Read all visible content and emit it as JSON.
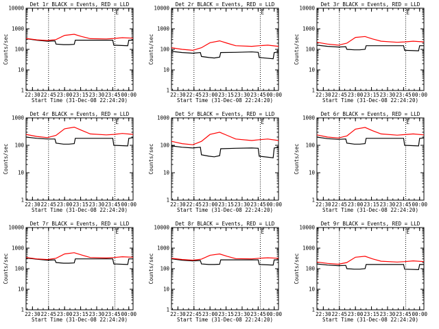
{
  "figure": {
    "background": "#ffffff",
    "axis_color": "#000000",
    "events_color": "#000000",
    "lld_color": "#ff0000"
  },
  "chart_data": [
    {
      "type": "line",
      "title": "Det 1r BLACK = Events, RED = LLD",
      "ylabel": "Counts/sec",
      "xlabel": "Start Time (31-Dec-08 22:24:20)",
      "yscale": "log",
      "ylim": [
        1,
        10000
      ],
      "y_ticks": [
        "1",
        "10",
        "100",
        "1000",
        "10000"
      ],
      "x_tick_labels": [
        "22:30",
        "22:45",
        "23:00",
        "23:15",
        "23:30",
        "23:45",
        "00:00"
      ],
      "x_ticks_min": [
        6,
        21,
        36,
        51,
        66,
        81,
        96
      ],
      "xlim_min": [
        0,
        100
      ],
      "vlines_min": [
        21,
        83
      ],
      "annotation": "E",
      "series": [
        {
          "name": "Events",
          "color": "#000000",
          "x": [
            0,
            10,
            20,
            27,
            28,
            35,
            40,
            45,
            46,
            60,
            75,
            81,
            82,
            95,
            96,
            100
          ],
          "y": [
            330,
            280,
            250,
            260,
            180,
            170,
            170,
            175,
            280,
            280,
            280,
            280,
            160,
            150,
            280,
            280
          ]
        },
        {
          "name": "LLD",
          "color": "#ff0000",
          "x": [
            0,
            10,
            20,
            28,
            36,
            45,
            52,
            60,
            75,
            82,
            90,
            100
          ],
          "y": [
            340,
            290,
            270,
            300,
            480,
            540,
            420,
            330,
            320,
            340,
            370,
            350
          ]
        }
      ]
    },
    {
      "type": "line",
      "title": "Det 2r BLACK = Events, RED = LLD",
      "ylabel": "Counts/sec",
      "xlabel": "Start Time (31-Dec-08 22:24:20)",
      "yscale": "log",
      "ylim": [
        1,
        10000
      ],
      "y_ticks": [
        "1",
        "10",
        "100",
        "1000",
        "10000"
      ],
      "x_tick_labels": [
        "22:30",
        "22:45",
        "23:00",
        "23:15",
        "23:30",
        "23:45",
        "00:00"
      ],
      "x_ticks_min": [
        6,
        21,
        36,
        51,
        66,
        81,
        96
      ],
      "xlim_min": [
        0,
        100
      ],
      "vlines_min": [
        21,
        83
      ],
      "annotation": "E",
      "series": [
        {
          "name": "Events",
          "color": "#000000",
          "x": [
            0,
            10,
            20,
            27,
            28,
            35,
            40,
            45,
            46,
            60,
            75,
            81,
            82,
            95,
            96,
            100
          ],
          "y": [
            80,
            70,
            65,
            70,
            45,
            40,
            38,
            42,
            70,
            72,
            75,
            72,
            40,
            35,
            70,
            75
          ]
        },
        {
          "name": "LLD",
          "color": "#ff0000",
          "x": [
            0,
            10,
            20,
            28,
            36,
            45,
            52,
            60,
            75,
            82,
            90,
            100
          ],
          "y": [
            120,
            100,
            90,
            120,
            210,
            260,
            200,
            150,
            140,
            150,
            160,
            140
          ]
        }
      ]
    },
    {
      "type": "line",
      "title": "Det 3r BLACK = Events, RED = LLD",
      "ylabel": "Counts/sec",
      "xlabel": "Start Time (31-Dec-08 22:24:20)",
      "yscale": "log",
      "ylim": [
        1,
        10000
      ],
      "y_ticks": [
        "1",
        "10",
        "100",
        "1000",
        "10000"
      ],
      "x_tick_labels": [
        "22:30",
        "22:45",
        "23:00",
        "23:15",
        "23:30",
        "23:45",
        "00:00"
      ],
      "x_ticks_min": [
        6,
        21,
        36,
        51,
        66,
        81,
        96
      ],
      "xlim_min": [
        0,
        100
      ],
      "vlines_min": [
        21,
        83
      ],
      "annotation": "E",
      "series": [
        {
          "name": "Events",
          "color": "#000000",
          "x": [
            0,
            10,
            20,
            27,
            28,
            35,
            40,
            45,
            46,
            60,
            75,
            81,
            82,
            95,
            96,
            100
          ],
          "y": [
            160,
            140,
            130,
            135,
            100,
            95,
            95,
            100,
            150,
            150,
            150,
            150,
            90,
            85,
            150,
            150
          ]
        },
        {
          "name": "LLD",
          "color": "#ff0000",
          "x": [
            0,
            10,
            20,
            28,
            36,
            45,
            52,
            60,
            75,
            82,
            90,
            100
          ],
          "y": [
            220,
            180,
            160,
            200,
            380,
            420,
            320,
            250,
            220,
            230,
            250,
            230
          ]
        }
      ]
    },
    {
      "type": "line",
      "title": "Det 4r BLACK = Events, RED = LLD",
      "ylabel": "Counts/sec",
      "xlabel": "Start Time (31-Dec-08 22:24:20)",
      "yscale": "log",
      "ylim": [
        1,
        1000
      ],
      "y_ticks": [
        "1",
        "10",
        "100",
        "1000"
      ],
      "x_tick_labels": [
        "22:30",
        "22:45",
        "23:00",
        "23:15",
        "23:30",
        "23:45",
        "00:00"
      ],
      "x_ticks_min": [
        6,
        21,
        36,
        51,
        66,
        81,
        96
      ],
      "xlim_min": [
        0,
        100
      ],
      "vlines_min": [
        21,
        83
      ],
      "annotation": "E",
      "series": [
        {
          "name": "Events",
          "color": "#000000",
          "x": [
            0,
            10,
            20,
            27,
            28,
            35,
            40,
            45,
            46,
            60,
            75,
            81,
            82,
            95,
            96,
            100
          ],
          "y": [
            200,
            180,
            170,
            170,
            120,
            110,
            110,
            115,
            180,
            180,
            180,
            180,
            100,
            95,
            180,
            190
          ]
        },
        {
          "name": "LLD",
          "color": "#ff0000",
          "x": [
            0,
            10,
            20,
            28,
            36,
            45,
            52,
            60,
            75,
            82,
            90,
            100
          ],
          "y": [
            250,
            210,
            190,
            230,
            400,
            460,
            350,
            260,
            240,
            250,
            270,
            250
          ]
        }
      ]
    },
    {
      "type": "line",
      "title": "Det 5r BLACK = Events, RED = LLD",
      "ylabel": "Counts/sec",
      "xlabel": "Start Time (31-Dec-08 22:24:20)",
      "yscale": "log",
      "ylim": [
        1,
        1000
      ],
      "y_ticks": [
        "1",
        "10",
        "100",
        "1000"
      ],
      "x_tick_labels": [
        "22:30",
        "22:45",
        "23:00",
        "23:15",
        "23:30",
        "23:45",
        "00:00"
      ],
      "x_ticks_min": [
        6,
        21,
        36,
        51,
        66,
        81,
        96
      ],
      "xlim_min": [
        0,
        100
      ],
      "vlines_min": [
        21,
        83
      ],
      "annotation": "E",
      "series": [
        {
          "name": "Events",
          "color": "#000000",
          "x": [
            0,
            10,
            20,
            27,
            28,
            35,
            40,
            45,
            46,
            60,
            75,
            81,
            82,
            95,
            96,
            100
          ],
          "y": [
            95,
            85,
            80,
            85,
            45,
            40,
            38,
            42,
            75,
            78,
            80,
            78,
            40,
            35,
            80,
            85
          ]
        },
        {
          "name": "LLD",
          "color": "#ff0000",
          "x": [
            0,
            10,
            20,
            28,
            36,
            45,
            52,
            60,
            75,
            82,
            90,
            100
          ],
          "y": [
            140,
            115,
            105,
            140,
            250,
            300,
            230,
            170,
            150,
            160,
            170,
            150
          ]
        }
      ]
    },
    {
      "type": "line",
      "title": "Det 6r BLACK = Events, RED = LLD",
      "ylabel": "Counts/sec",
      "xlabel": "Start Time (31-Dec-08 22:24:20)",
      "yscale": "log",
      "ylim": [
        1,
        1000
      ],
      "y_ticks": [
        "1",
        "10",
        "100",
        "1000"
      ],
      "x_tick_labels": [
        "22:30",
        "22:45",
        "23:00",
        "23:15",
        "23:30",
        "23:45",
        "00:00"
      ],
      "x_ticks_min": [
        6,
        21,
        36,
        51,
        66,
        81,
        96
      ],
      "xlim_min": [
        0,
        100
      ],
      "vlines_min": [
        21,
        83
      ],
      "annotation": "E",
      "series": [
        {
          "name": "Events",
          "color": "#000000",
          "x": [
            0,
            10,
            20,
            27,
            28,
            35,
            40,
            45,
            46,
            60,
            75,
            81,
            82,
            95,
            96,
            100
          ],
          "y": [
            200,
            175,
            165,
            170,
            120,
            110,
            110,
            115,
            180,
            180,
            180,
            180,
            100,
            95,
            180,
            185
          ]
        },
        {
          "name": "LLD",
          "color": "#ff0000",
          "x": [
            0,
            10,
            20,
            28,
            36,
            45,
            52,
            60,
            75,
            82,
            90,
            100
          ],
          "y": [
            240,
            200,
            185,
            220,
            390,
            450,
            340,
            260,
            235,
            245,
            260,
            240
          ]
        }
      ]
    },
    {
      "type": "line",
      "title": "Det 7r BLACK = Events, RED = LLD",
      "ylabel": "Counts/sec",
      "xlabel": "Start Time (31-Dec-08 22:24:20)",
      "yscale": "log",
      "ylim": [
        1,
        10000
      ],
      "y_ticks": [
        "1",
        "10",
        "100",
        "1000",
        "10000"
      ],
      "x_tick_labels": [
        "22:30",
        "22:45",
        "23:00",
        "23:15",
        "23:30",
        "23:45",
        "00:00"
      ],
      "x_ticks_min": [
        6,
        21,
        36,
        51,
        66,
        81,
        96
      ],
      "xlim_min": [
        0,
        100
      ],
      "vlines_min": [
        21,
        83
      ],
      "annotation": "E",
      "series": [
        {
          "name": "Events",
          "color": "#000000",
          "x": [
            0,
            10,
            20,
            27,
            28,
            35,
            40,
            45,
            46,
            60,
            75,
            81,
            82,
            95,
            96,
            100
          ],
          "y": [
            330,
            290,
            260,
            270,
            200,
            185,
            185,
            190,
            300,
            300,
            300,
            300,
            170,
            160,
            300,
            300
          ]
        },
        {
          "name": "LLD",
          "color": "#ff0000",
          "x": [
            0,
            10,
            20,
            28,
            36,
            45,
            52,
            60,
            75,
            82,
            90,
            100
          ],
          "y": [
            350,
            300,
            280,
            320,
            520,
            600,
            460,
            350,
            330,
            350,
            380,
            360
          ]
        }
      ]
    },
    {
      "type": "line",
      "title": "Det 8r BLACK = Events, RED = LLD",
      "ylabel": "Counts/sec",
      "xlabel": "Start Time (31-Dec-08 22:24:20)",
      "yscale": "log",
      "ylim": [
        1,
        10000
      ],
      "y_ticks": [
        "1",
        "10",
        "100",
        "1000",
        "10000"
      ],
      "x_tick_labels": [
        "22:30",
        "22:45",
        "23:00",
        "23:15",
        "23:30",
        "23:45",
        "00:00"
      ],
      "x_ticks_min": [
        6,
        21,
        36,
        51,
        66,
        81,
        96
      ],
      "xlim_min": [
        0,
        100
      ],
      "vlines_min": [
        21,
        83
      ],
      "annotation": "E",
      "series": [
        {
          "name": "Events",
          "color": "#000000",
          "x": [
            0,
            10,
            20,
            27,
            28,
            35,
            40,
            45,
            46,
            60,
            75,
            81,
            82,
            95,
            96,
            100
          ],
          "y": [
            300,
            260,
            240,
            250,
            170,
            160,
            160,
            165,
            270,
            270,
            270,
            270,
            160,
            150,
            270,
            270
          ]
        },
        {
          "name": "LLD",
          "color": "#ff0000",
          "x": [
            0,
            10,
            20,
            28,
            36,
            45,
            52,
            60,
            75,
            82,
            90,
            100
          ],
          "y": [
            320,
            280,
            260,
            290,
            450,
            520,
            400,
            310,
            300,
            320,
            340,
            320
          ]
        }
      ]
    },
    {
      "type": "line",
      "title": "Det 9r BLACK = Events, RED = LLD",
      "ylabel": "Counts/sec",
      "xlabel": "Start Time (31-Dec-08 22:24:20)",
      "yscale": "log",
      "ylim": [
        1,
        10000
      ],
      "y_ticks": [
        "1",
        "10",
        "100",
        "1000",
        "10000"
      ],
      "x_tick_labels": [
        "22:30",
        "22:45",
        "23:00",
        "23:15",
        "23:30",
        "23:45",
        "00:00"
      ],
      "x_ticks_min": [
        6,
        21,
        36,
        51,
        66,
        81,
        96
      ],
      "xlim_min": [
        0,
        100
      ],
      "vlines_min": [
        21,
        83
      ],
      "annotation": "E",
      "series": [
        {
          "name": "Events",
          "color": "#000000",
          "x": [
            0,
            10,
            20,
            27,
            28,
            35,
            40,
            45,
            46,
            60,
            75,
            81,
            82,
            95,
            96,
            100
          ],
          "y": [
            170,
            150,
            140,
            145,
            100,
            95,
            95,
            100,
            160,
            160,
            160,
            160,
            95,
            90,
            160,
            160
          ]
        },
        {
          "name": "LLD",
          "color": "#ff0000",
          "x": [
            0,
            10,
            20,
            28,
            36,
            45,
            52,
            60,
            75,
            82,
            90,
            100
          ],
          "y": [
            210,
            180,
            165,
            200,
            360,
            400,
            300,
            230,
            210,
            220,
            240,
            220
          ]
        }
      ]
    }
  ]
}
